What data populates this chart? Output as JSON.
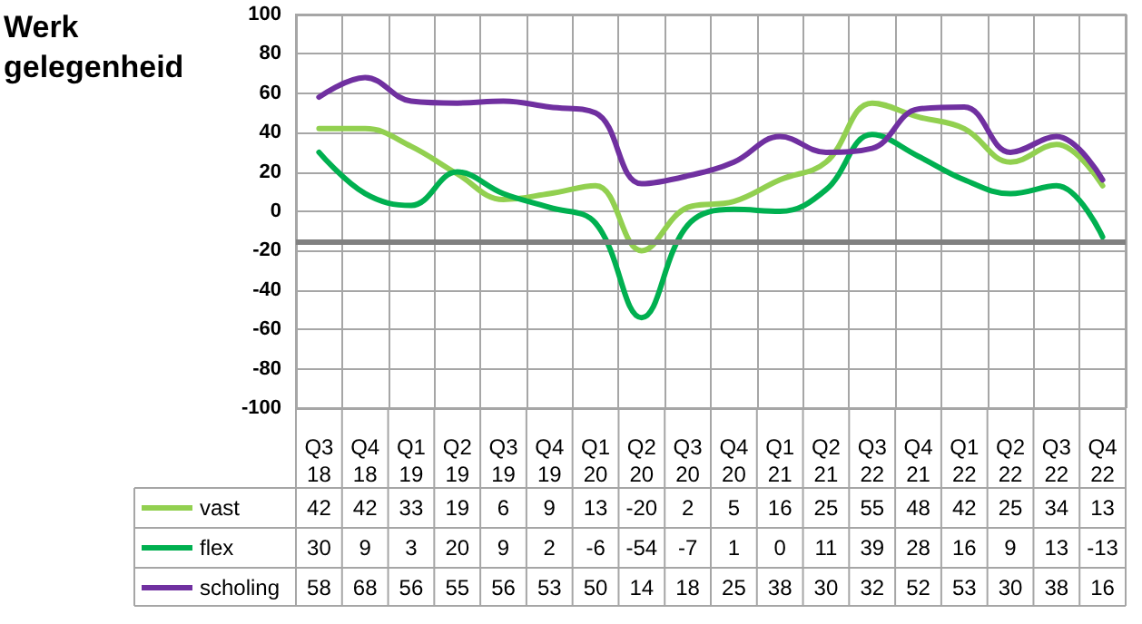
{
  "chart_data": {
    "type": "line",
    "title": "Werk gelegenheid",
    "categories": [
      "Q3 18",
      "Q4 18",
      "Q1 19",
      "Q2 19",
      "Q3 19",
      "Q4 19",
      "Q1 20",
      "Q2 20",
      "Q3 20",
      "Q4 20",
      "Q1 21",
      "Q2 21",
      "Q3 22",
      "Q4 21",
      "Q1 22",
      "Q2 22",
      "Q3 22",
      "Q4 22"
    ],
    "series": [
      {
        "name": "vast",
        "color": "#92d050",
        "values": [
          42,
          42,
          33,
          19,
          6,
          9,
          13,
          -20,
          2,
          5,
          16,
          25,
          55,
          48,
          42,
          25,
          34,
          13
        ]
      },
      {
        "name": "flex",
        "color": "#00b050",
        "values": [
          30,
          9,
          3,
          20,
          9,
          2,
          -6,
          -54,
          -7,
          1,
          0,
          11,
          39,
          28,
          16,
          9,
          13,
          -13
        ]
      },
      {
        "name": "scholing",
        "color": "#7030a0",
        "values": [
          58,
          68,
          56,
          55,
          56,
          53,
          50,
          14,
          18,
          25,
          38,
          30,
          32,
          52,
          53,
          30,
          38,
          16
        ]
      }
    ],
    "ylim": [
      -100,
      100
    ],
    "yticks": [
      -100,
      -80,
      -60,
      -40,
      -20,
      0,
      20,
      40,
      60,
      80,
      100
    ],
    "grid": true,
    "legend": "bottom left",
    "data_labels": true,
    "marker": "none",
    "line_style": "solid",
    "ref_lines": [
      {
        "axis": "y",
        "value": -15,
        "color": "#808080"
      }
    ]
  }
}
